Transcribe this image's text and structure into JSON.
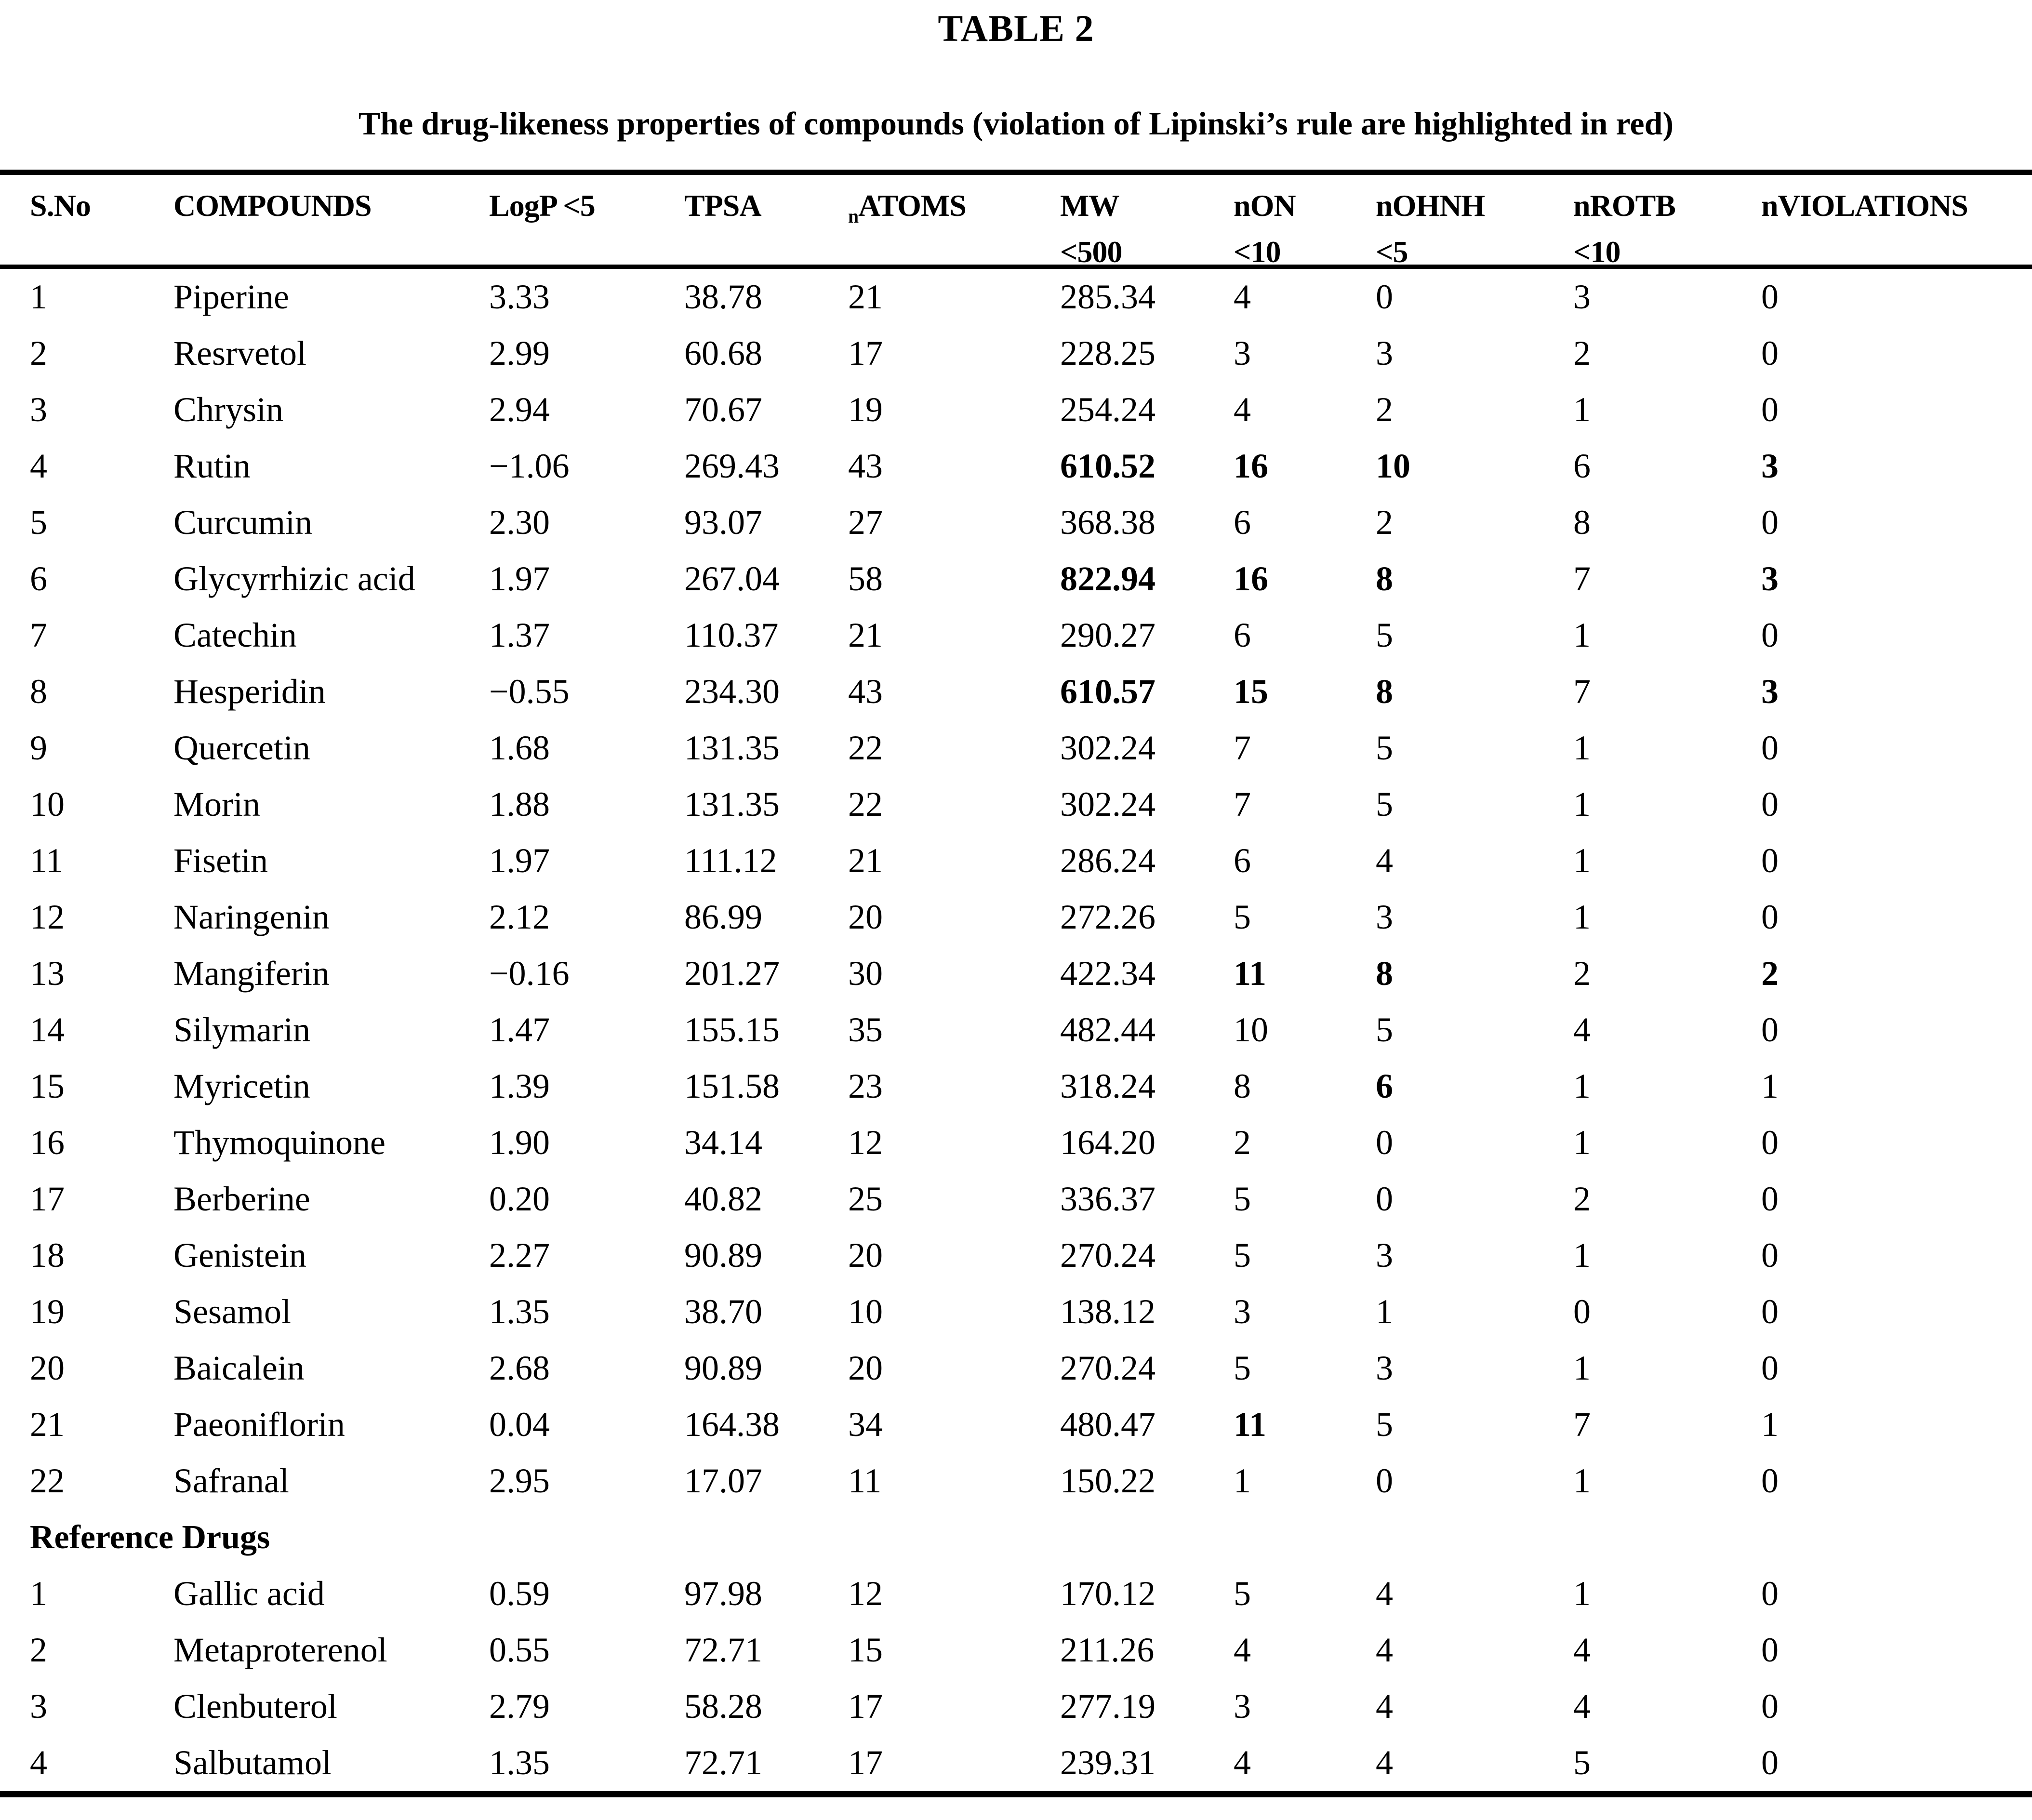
{
  "title": "TABLE 2",
  "subtitle": "The drug-likeness properties of compounds (violation of Lipinski’s rule are highlighted in red)",
  "violation_highlight": {
    "style": "bold",
    "color": "#000000"
  },
  "table": {
    "columns": [
      {
        "id": "sno",
        "line1": "S.No"
      },
      {
        "id": "compound",
        "line1": "COMPOUNDS"
      },
      {
        "id": "logp",
        "line1": "LogP <5"
      },
      {
        "id": "tpsa",
        "line1": "TPSA"
      },
      {
        "id": "natoms",
        "sub1": "n",
        "line1": "ATOMS"
      },
      {
        "id": "mw",
        "line1": "MW",
        "line2": "<500"
      },
      {
        "id": "non",
        "line1": "nON",
        "line2": "<10"
      },
      {
        "id": "nohnh",
        "line1": "nOHNH",
        "line2": "<5"
      },
      {
        "id": "nrotb",
        "line1": "nROTB",
        "line2": "<10"
      },
      {
        "id": "nviol",
        "line1": "nVIOLATIONS"
      }
    ],
    "rows": [
      {
        "cells": [
          "1",
          "Piperine",
          "3.33",
          "38.78",
          "21",
          "285.34",
          "4",
          "0",
          "3",
          "0"
        ],
        "bold": []
      },
      {
        "cells": [
          "2",
          "Resrvetol",
          "2.99",
          "60.68",
          "17",
          "228.25",
          "3",
          "3",
          "2",
          "0"
        ],
        "bold": []
      },
      {
        "cells": [
          "3",
          "Chrysin",
          "2.94",
          "70.67",
          "19",
          "254.24",
          "4",
          "2",
          "1",
          "0"
        ],
        "bold": []
      },
      {
        "cells": [
          "4",
          "Rutin",
          "−1.06",
          "269.43",
          "43",
          "610.52",
          "16",
          "10",
          "6",
          "3"
        ],
        "bold": [
          5,
          6,
          7,
          9
        ]
      },
      {
        "cells": [
          "5",
          "Curcumin",
          "2.30",
          "93.07",
          "27",
          "368.38",
          "6",
          "2",
          "8",
          "0"
        ],
        "bold": []
      },
      {
        "cells": [
          "6",
          "Glycyrrhizic acid",
          "1.97",
          "267.04",
          "58",
          "822.94",
          "16",
          "8",
          "7",
          "3"
        ],
        "bold": [
          5,
          6,
          7,
          9
        ]
      },
      {
        "cells": [
          "7",
          "Catechin",
          "1.37",
          "110.37",
          "21",
          "290.27",
          "6",
          "5",
          "1",
          "0"
        ],
        "bold": []
      },
      {
        "cells": [
          "8",
          "Hesperidin",
          "−0.55",
          "234.30",
          "43",
          "610.57",
          "15",
          "8",
          "7",
          "3"
        ],
        "bold": [
          5,
          6,
          7,
          9
        ]
      },
      {
        "cells": [
          "9",
          "Quercetin",
          "1.68",
          "131.35",
          "22",
          "302.24",
          "7",
          "5",
          "1",
          "0"
        ],
        "bold": []
      },
      {
        "cells": [
          "10",
          "Morin",
          "1.88",
          "131.35",
          "22",
          "302.24",
          "7",
          "5",
          "1",
          "0"
        ],
        "bold": []
      },
      {
        "cells": [
          "11",
          "Fisetin",
          "1.97",
          "111.12",
          "21",
          "286.24",
          "6",
          "4",
          "1",
          "0"
        ],
        "bold": []
      },
      {
        "cells": [
          "12",
          "Naringenin",
          "2.12",
          "86.99",
          "20",
          "272.26",
          "5",
          "3",
          "1",
          "0"
        ],
        "bold": []
      },
      {
        "cells": [
          "13",
          "Mangiferin",
          "−0.16",
          "201.27",
          "30",
          "422.34",
          "11",
          "8",
          "2",
          "2"
        ],
        "bold": [
          6,
          7,
          9
        ]
      },
      {
        "cells": [
          "14",
          "Silymarin",
          "1.47",
          "155.15",
          "35",
          "482.44",
          "10",
          "5",
          "4",
          "0"
        ],
        "bold": []
      },
      {
        "cells": [
          "15",
          "Myricetin",
          "1.39",
          "151.58",
          "23",
          "318.24",
          "8",
          "6",
          "1",
          "1"
        ],
        "bold": [
          7
        ]
      },
      {
        "cells": [
          "16",
          "Thymoquinone",
          "1.90",
          "34.14",
          "12",
          "164.20",
          "2",
          "0",
          "1",
          "0"
        ],
        "bold": []
      },
      {
        "cells": [
          "17",
          "Berberine",
          "0.20",
          "40.82",
          "25",
          "336.37",
          "5",
          "0",
          "2",
          "0"
        ],
        "bold": []
      },
      {
        "cells": [
          "18",
          "Genistein",
          "2.27",
          "90.89",
          "20",
          "270.24",
          "5",
          "3",
          "1",
          "0"
        ],
        "bold": []
      },
      {
        "cells": [
          "19",
          "Sesamol",
          "1.35",
          "38.70",
          "10",
          "138.12",
          "3",
          "1",
          "0",
          "0"
        ],
        "bold": []
      },
      {
        "cells": [
          "20",
          "Baicalein",
          "2.68",
          "90.89",
          "20",
          "270.24",
          "5",
          "3",
          "1",
          "0"
        ],
        "bold": []
      },
      {
        "cells": [
          "21",
          "Paeoniflorin",
          "0.04",
          "164.38",
          "34",
          "480.47",
          "11",
          "5",
          "7",
          "1"
        ],
        "bold": [
          6
        ]
      },
      {
        "cells": [
          "22",
          "Safranal",
          "2.95",
          "17.07",
          "11",
          "150.22",
          "1",
          "0",
          "1",
          "0"
        ],
        "bold": []
      }
    ],
    "section_label": "Reference Drugs",
    "reference_rows": [
      {
        "cells": [
          "1",
          "Gallic acid",
          "0.59",
          "97.98",
          "12",
          "170.12",
          "5",
          "4",
          "1",
          "0"
        ],
        "bold": []
      },
      {
        "cells": [
          "2",
          "Metaproterenol",
          "0.55",
          "72.71",
          "15",
          "211.26",
          "4",
          "4",
          "4",
          "0"
        ],
        "bold": []
      },
      {
        "cells": [
          "3",
          "Clenbuterol",
          "2.79",
          "58.28",
          "17",
          "277.19",
          "3",
          "4",
          "4",
          "0"
        ],
        "bold": []
      },
      {
        "cells": [
          "4",
          "Salbutamol",
          "1.35",
          "72.71",
          "17",
          "239.31",
          "4",
          "4",
          "5",
          "0"
        ],
        "bold": []
      }
    ]
  }
}
